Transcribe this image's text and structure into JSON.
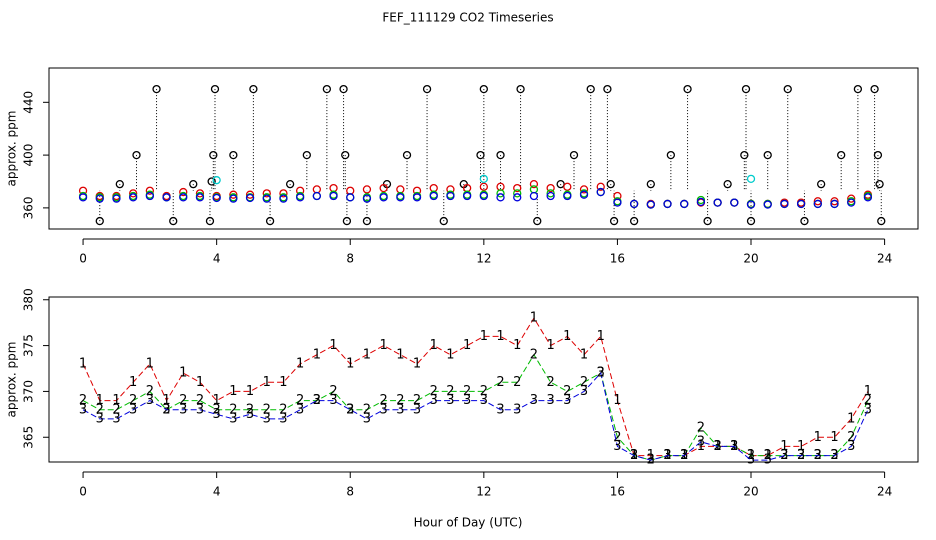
{
  "title": "FEF_111129  CO2 Timeseries",
  "x_axis_label": "Hour of Day (UTC)",
  "chart_data": [
    {
      "type": "scatter",
      "y_axis_label": "approx. ppm",
      "xlim": [
        -1.02,
        25
      ],
      "xticks": [
        0,
        4,
        8,
        12,
        16,
        20,
        24
      ],
      "ylim": [
        344,
        466
      ],
      "yticks": [
        360,
        400,
        440
      ],
      "x": [
        0,
        0.5,
        1,
        1.5,
        2,
        2.5,
        3,
        3.5,
        4,
        4.5,
        5,
        5.5,
        6,
        6.5,
        7,
        7.5,
        8,
        8.5,
        9,
        9.5,
        10,
        10.5,
        11,
        11.5,
        12,
        12.5,
        13,
        13.5,
        14,
        14.5,
        15,
        15.5,
        16,
        16.5,
        17,
        17.5,
        18,
        18.5,
        19,
        19.5,
        20,
        20.5,
        21,
        21.5,
        22,
        22.5,
        23,
        23.5
      ],
      "series": [
        {
          "color": "#000000",
          "x": [
            0.5,
            1.1,
            1.6,
            2.2,
            2.7,
            3.3,
            3.8,
            3.85,
            3.9,
            3.95,
            4.5,
            5.1,
            5.6,
            6.2,
            6.7,
            7.3,
            7.8,
            7.85,
            7.9,
            8.5,
            9.1,
            9.7,
            10.3,
            10.8,
            11.4,
            11.9,
            12.0,
            12.5,
            13.1,
            13.6,
            14.3,
            14.7,
            15.2,
            15.7,
            15.8,
            15.9,
            16.5,
            17.0,
            17.6,
            18.1,
            18.7,
            19.3,
            19.8,
            19.85,
            20.0,
            20.5,
            21.1,
            21.6,
            22.1,
            22.7,
            23.2,
            23.7,
            23.8,
            23.85,
            23.9
          ],
          "values": [
            350,
            378,
            400,
            450,
            350,
            378,
            350,
            380,
            400,
            450,
            400,
            450,
            350,
            378,
            400,
            450,
            450,
            400,
            350,
            350,
            378,
            400,
            450,
            350,
            378,
            400,
            450,
            400,
            450,
            350,
            378,
            400,
            450,
            450,
            378,
            350,
            350,
            378,
            400,
            450,
            350,
            378,
            400,
            450,
            350,
            400,
            450,
            350,
            378,
            400,
            450,
            450,
            400,
            378,
            350
          ]
        },
        {
          "color": "#dd0000",
          "values": [
            373,
            369,
            369,
            371,
            373,
            369,
            372,
            371,
            369,
            370,
            370,
            371,
            371,
            373,
            374,
            375,
            373,
            374,
            375,
            374,
            373,
            375,
            374,
            375,
            376,
            376,
            375,
            378,
            375,
            376,
            374,
            376,
            369,
            363,
            363,
            363,
            363,
            364,
            364,
            364,
            363,
            363,
            364,
            364,
            365,
            365,
            367,
            370
          ]
        },
        {
          "color": "#00bb00",
          "values": [
            369,
            368,
            368,
            369,
            370,
            368,
            369,
            369,
            368,
            368,
            368,
            368,
            368,
            369,
            369,
            370,
            368,
            368,
            369,
            369,
            369,
            370,
            370,
            370,
            370,
            371,
            371,
            374,
            371,
            370,
            371,
            372,
            365,
            363,
            362.5,
            363,
            363,
            366,
            364,
            364,
            363,
            363,
            363,
            363,
            363,
            363,
            365,
            369
          ]
        },
        {
          "color": "#0000dd",
          "values": [
            368,
            367,
            367,
            368,
            369,
            368,
            368,
            368,
            367.5,
            367,
            367.5,
            367,
            367,
            368,
            369,
            369,
            368,
            367,
            368,
            368,
            368,
            369,
            369,
            369,
            369,
            368,
            368,
            369,
            369,
            369,
            370,
            372,
            364,
            363,
            362.5,
            363,
            363,
            364.5,
            364,
            364,
            362.5,
            362.5,
            363,
            363,
            363,
            363,
            364,
            368
          ]
        },
        {
          "color": "#00cccc",
          "x": [
            4.0,
            12.0,
            20.0
          ],
          "values": [
            381,
            382,
            382
          ]
        }
      ]
    },
    {
      "type": "line",
      "y_axis_label": "approx. ppm",
      "xlim": [
        -1.02,
        25
      ],
      "xticks": [
        0,
        4,
        8,
        12,
        16,
        20,
        24
      ],
      "ylim": [
        362.3,
        380.3
      ],
      "yticks": [
        365,
        370,
        375,
        380
      ],
      "x": [
        0,
        0.5,
        1,
        1.5,
        2,
        2.5,
        3,
        3.5,
        4,
        4.5,
        5,
        5.5,
        6,
        6.5,
        7,
        7.5,
        8,
        8.5,
        9,
        9.5,
        10,
        10.5,
        11,
        11.5,
        12,
        12.5,
        13,
        13.5,
        14,
        14.5,
        15,
        15.5,
        16,
        16.5,
        17,
        17.5,
        18,
        18.5,
        19,
        19.5,
        20,
        20.5,
        21,
        21.5,
        22,
        22.5,
        23,
        23.5
      ],
      "series": [
        {
          "name": "1",
          "color": "#dd0000",
          "values": [
            373,
            369,
            369,
            371,
            373,
            369,
            372,
            371,
            369,
            370,
            370,
            371,
            371,
            373,
            374,
            375,
            373,
            374,
            375,
            374,
            373,
            375,
            374,
            375,
            376,
            376,
            375,
            378,
            375,
            376,
            374,
            376,
            369,
            363,
            363,
            363,
            363,
            364,
            364,
            364,
            363,
            363,
            364,
            364,
            365,
            365,
            367,
            370
          ]
        },
        {
          "name": "2",
          "color": "#00bb00",
          "values": [
            369,
            368,
            368,
            369,
            370,
            368,
            369,
            369,
            368,
            368,
            368,
            368,
            368,
            369,
            369,
            370,
            368,
            368,
            369,
            369,
            369,
            370,
            370,
            370,
            370,
            371,
            371,
            374,
            371,
            370,
            371,
            372,
            365,
            363,
            362.5,
            363,
            363,
            366,
            364,
            364,
            363,
            363,
            363,
            363,
            363,
            363,
            365,
            369
          ]
        },
        {
          "name": "3",
          "color": "#0000dd",
          "values": [
            368,
            367,
            367,
            368,
            369,
            368,
            368,
            368,
            367.5,
            367,
            367.5,
            367,
            367,
            368,
            369,
            369,
            368,
            367,
            368,
            368,
            368,
            369,
            369,
            369,
            369,
            368,
            368,
            369,
            369,
            369,
            370,
            372,
            364,
            363,
            362.5,
            363,
            363,
            364.5,
            364,
            364,
            362.5,
            362.5,
            363,
            363,
            363,
            363,
            364,
            368
          ]
        }
      ]
    }
  ]
}
